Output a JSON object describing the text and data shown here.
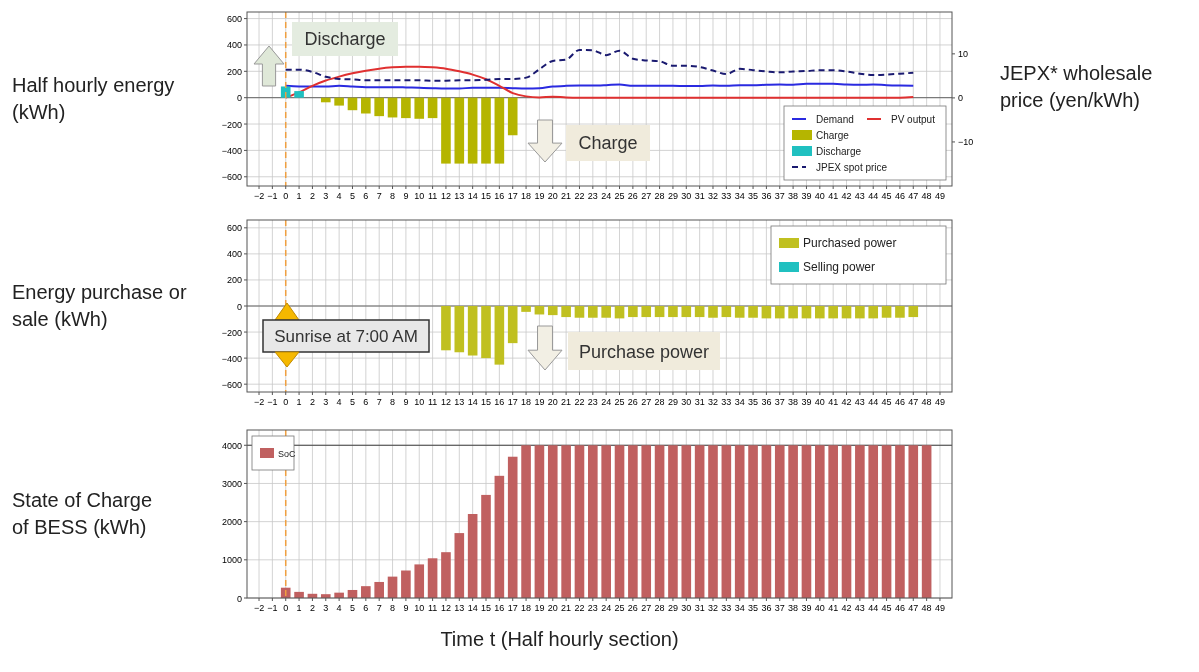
{
  "chart_data": [
    {
      "type": "bar",
      "ylabel": "Half hourly energy (kWh)",
      "y2label": "JEPX* wholesale price (yen/kWh)",
      "xlim": [
        -2.9,
        49.9
      ],
      "xticks": [
        -2,
        -1,
        0,
        1,
        2,
        3,
        4,
        5,
        6,
        7,
        8,
        9,
        10,
        11,
        12,
        13,
        14,
        15,
        16,
        17,
        18,
        19,
        20,
        21,
        22,
        23,
        24,
        25,
        26,
        27,
        28,
        29,
        30,
        31,
        32,
        33,
        34,
        35,
        36,
        37,
        38,
        39,
        40,
        41,
        42,
        43,
        44,
        45,
        46,
        47,
        48,
        49
      ],
      "ylim": [
        -670,
        650
      ],
      "yticks": [
        -600,
        -400,
        -200,
        0,
        200,
        400,
        600
      ],
      "y2lim": [
        -20,
        19.5
      ],
      "y2ticks": [
        {
          "value": -10,
          "label": "−10"
        },
        0,
        10
      ],
      "grid": true,
      "legend": "bottom right",
      "annotations": [
        "Discharge",
        "Charge"
      ],
      "ref_lines": [
        {
          "axis": "x",
          "value": 0,
          "color": "#f0a040",
          "line_style": "dashed"
        }
      ],
      "series": [
        {
          "name": "Demand",
          "type": "line",
          "color": "#2a2ae0",
          "x": [
            0,
            1,
            2,
            3,
            4,
            5,
            6,
            7,
            8,
            9,
            10,
            11,
            12,
            13,
            14,
            15,
            16,
            17,
            18,
            19,
            20,
            21,
            22,
            23,
            24,
            25,
            26,
            27,
            28,
            29,
            30,
            31,
            32,
            33,
            34,
            35,
            36,
            37,
            38,
            39,
            40,
            41,
            42,
            43,
            44,
            45,
            46,
            47
          ],
          "values": [
            90,
            85,
            85,
            85,
            90,
            85,
            80,
            80,
            80,
            78,
            75,
            72,
            70,
            70,
            75,
            75,
            75,
            72,
            70,
            72,
            85,
            90,
            92,
            92,
            95,
            100,
            90,
            90,
            90,
            90,
            88,
            88,
            92,
            90,
            95,
            95,
            98,
            100,
            98,
            105,
            105,
            105,
            100,
            98,
            100,
            95,
            92,
            90
          ]
        },
        {
          "name": "PV output",
          "type": "line",
          "color": "#e03030",
          "x": [
            0,
            1,
            2,
            3,
            4,
            5,
            6,
            7,
            8,
            9,
            10,
            11,
            12,
            13,
            14,
            15,
            16,
            17,
            18,
            19,
            20,
            21,
            22,
            23,
            24,
            25,
            26,
            27,
            28,
            29,
            30,
            31,
            32,
            33,
            34,
            35,
            36,
            37,
            38,
            39,
            40,
            41,
            42,
            43,
            44,
            45,
            46,
            47
          ],
          "values": [
            0,
            40,
            90,
            130,
            160,
            185,
            205,
            220,
            230,
            235,
            235,
            230,
            220,
            200,
            175,
            140,
            90,
            35,
            10,
            2,
            8,
            2,
            0,
            0,
            0,
            0,
            0,
            0,
            0,
            0,
            0,
            0,
            0,
            0,
            0,
            0,
            0,
            0,
            0,
            0,
            0,
            0,
            0,
            0,
            0,
            0,
            0,
            5
          ]
        },
        {
          "name": "Charge",
          "color": "#b5b500",
          "x": [
            3,
            4,
            5,
            6,
            7,
            8,
            9,
            10,
            11,
            12,
            13,
            14,
            15,
            16,
            17
          ],
          "values": [
            -35,
            -60,
            -95,
            -120,
            -140,
            -150,
            -155,
            -160,
            -155,
            -500,
            -500,
            -500,
            -500,
            -500,
            -285
          ]
        },
        {
          "name": "Discharge",
          "color": "#20c0c0",
          "x": [
            0,
            1
          ],
          "values": [
            85,
            50
          ]
        },
        {
          "name": "JPEX spot price",
          "type": "line",
          "axis": "y2",
          "line_style": "dashed",
          "color": "#1a1a70",
          "x": [
            0,
            1,
            2,
            3,
            4,
            5,
            6,
            7,
            8,
            9,
            10,
            11,
            12,
            13,
            14,
            15,
            16,
            17,
            18,
            19,
            20,
            21,
            22,
            23,
            24,
            25,
            26,
            27,
            28,
            29,
            30,
            31,
            32,
            33,
            34,
            35,
            36,
            37,
            38,
            39,
            40,
            41,
            42,
            43,
            44,
            45,
            46,
            47
          ],
          "values": [
            6.4,
            6.4,
            5.9,
            4.8,
            4.3,
            4.2,
            4.0,
            4.0,
            4.0,
            4.0,
            4.0,
            3.9,
            3.9,
            4.0,
            4.0,
            4.1,
            4.3,
            4.3,
            4.6,
            6.5,
            8.4,
            8.7,
            10.9,
            10.8,
            9.7,
            10.7,
            8.9,
            8.5,
            8.3,
            7.3,
            7.3,
            7.0,
            6.2,
            5.4,
            6.6,
            6.3,
            6.0,
            5.8,
            6.0,
            6.1,
            6.3,
            6.3,
            6.0,
            5.5,
            5.2,
            5.3,
            5.5,
            5.7
          ]
        }
      ]
    },
    {
      "type": "bar",
      "ylabel": "Energy purchase or sale (kWh)",
      "xlim": [
        -2.9,
        49.9
      ],
      "xticks": [
        -2,
        -1,
        0,
        1,
        2,
        3,
        4,
        5,
        6,
        7,
        8,
        9,
        10,
        11,
        12,
        13,
        14,
        15,
        16,
        17,
        18,
        19,
        20,
        21,
        22,
        23,
        24,
        25,
        26,
        27,
        28,
        29,
        30,
        31,
        32,
        33,
        34,
        35,
        36,
        37,
        38,
        39,
        40,
        41,
        42,
        43,
        44,
        45,
        46,
        47,
        48,
        49
      ],
      "ylim": [
        -660,
        660
      ],
      "yticks": [
        -600,
        -400,
        -200,
        0,
        200,
        400,
        600
      ],
      "grid": true,
      "legend": "top right",
      "annotations": [
        "Sunrise at 7:00 AM",
        "Purchase power"
      ],
      "ref_lines": [
        {
          "axis": "x",
          "value": 0,
          "color": "#f0a040",
          "line_style": "dashed"
        }
      ],
      "series": [
        {
          "name": "Purchased power",
          "color": "#c0c020",
          "x": [
            12,
            13,
            14,
            15,
            16,
            17,
            18,
            19,
            20,
            21,
            22,
            23,
            24,
            25,
            26,
            27,
            28,
            29,
            30,
            31,
            32,
            33,
            34,
            35,
            36,
            37,
            38,
            39,
            40,
            41,
            42,
            43,
            44,
            45,
            46,
            47
          ],
          "values": [
            -340,
            -355,
            -380,
            -400,
            -450,
            -285,
            -45,
            -65,
            -70,
            -85,
            -90,
            -90,
            -90,
            -95,
            -85,
            -85,
            -85,
            -85,
            -85,
            -85,
            -90,
            -85,
            -90,
            -90,
            -95,
            -95,
            -95,
            -95,
            -95,
            -95,
            -95,
            -95,
            -95,
            -90,
            -90,
            -85
          ]
        },
        {
          "name": "Selling power",
          "color": "#20c0c0"
        }
      ]
    },
    {
      "type": "bar",
      "ylabel": "State of Charge of BESS (kWh)",
      "xlabel": "Time t  (Half hourly section)",
      "xlim": [
        -2.9,
        49.9
      ],
      "xticks": [
        -2,
        -1,
        0,
        1,
        2,
        3,
        4,
        5,
        6,
        7,
        8,
        9,
        10,
        11,
        12,
        13,
        14,
        15,
        16,
        17,
        18,
        19,
        20,
        21,
        22,
        23,
        24,
        25,
        26,
        27,
        28,
        29,
        30,
        31,
        32,
        33,
        34,
        35,
        36,
        37,
        38,
        39,
        40,
        41,
        42,
        43,
        44,
        45,
        46,
        47,
        48,
        49
      ],
      "ylim": [
        0,
        4400
      ],
      "yticks": [
        0,
        1000,
        2000,
        3000,
        4000
      ],
      "grid": true,
      "legend": "top left",
      "ref_lines": [
        {
          "axis": "x",
          "value": 0,
          "color": "#f0a040",
          "line_style": "dashed"
        },
        {
          "axis": "y",
          "value": 4000,
          "color": "#404040"
        }
      ],
      "series": [
        {
          "name": "SoC",
          "color": "#c06060",
          "x": [
            0,
            1,
            2,
            3,
            4,
            5,
            6,
            7,
            8,
            9,
            10,
            11,
            12,
            13,
            14,
            15,
            16,
            17,
            18,
            19,
            20,
            21,
            22,
            23,
            24,
            25,
            26,
            27,
            28,
            29,
            30,
            31,
            32,
            33,
            34,
            35,
            36,
            37,
            38,
            39,
            40,
            41,
            42,
            43,
            44,
            45,
            46,
            47,
            48
          ],
          "values": [
            270,
            160,
            110,
            100,
            140,
            210,
            310,
            420,
            560,
            720,
            880,
            1040,
            1200,
            1700,
            2200,
            2700,
            3200,
            3700,
            4000,
            4000,
            4000,
            4000,
            4000,
            4000,
            4000,
            4000,
            4000,
            4000,
            4000,
            4000,
            4000,
            4000,
            4000,
            4000,
            4000,
            4000,
            4000,
            4000,
            4000,
            4000,
            4000,
            4000,
            4000,
            4000,
            4000,
            4000,
            4000,
            4000,
            4000
          ]
        }
      ]
    }
  ]
}
